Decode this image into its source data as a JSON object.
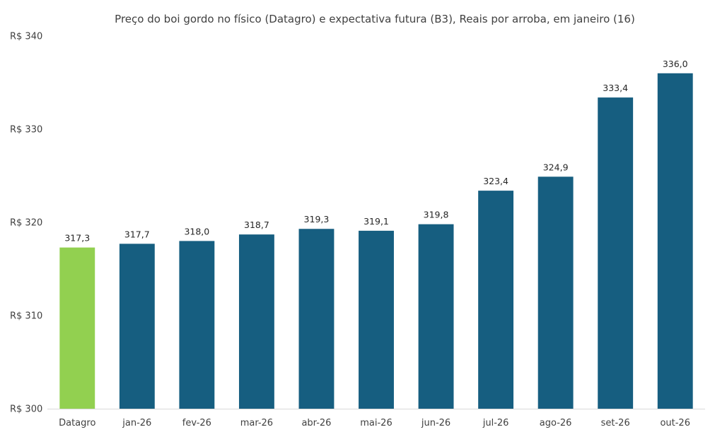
{
  "chart_data": {
    "type": "bar",
    "title": "Preço do boi gordo no físico (Datagro)  e expectativa futura (B3), Reais por arroba, em janeiro (16)",
    "xlabel": "",
    "ylabel": "",
    "ylim": [
      300,
      340
    ],
    "ytick_values": [
      300,
      310,
      320,
      330,
      340
    ],
    "ytick_labels": [
      "R$ 300",
      "R$ 310",
      "R$ 320",
      "R$ 330",
      "R$ 340"
    ],
    "grid": false,
    "legend": "none",
    "categories": [
      "Datagro",
      "jan-26",
      "fev-26",
      "mar-26",
      "abr-26",
      "mai-26",
      "jun-26",
      "jul-26",
      "ago-26",
      "set-26",
      "out-26"
    ],
    "values": [
      317.3,
      317.7,
      318.0,
      318.7,
      319.3,
      319.1,
      319.8,
      323.4,
      324.9,
      333.4,
      336.0
    ],
    "value_labels": [
      "317,3",
      "317,7",
      "318,0",
      "318,7",
      "319,3",
      "319,1",
      "319,8",
      "323,4",
      "324,9",
      "333,4",
      "336,0"
    ],
    "bar_colors": [
      "#92d050",
      "#165e80",
      "#165e80",
      "#165e80",
      "#165e80",
      "#165e80",
      "#165e80",
      "#165e80",
      "#165e80",
      "#165e80",
      "#165e80"
    ],
    "axis_color": "#d9d9d9",
    "text_color": "#404040"
  }
}
